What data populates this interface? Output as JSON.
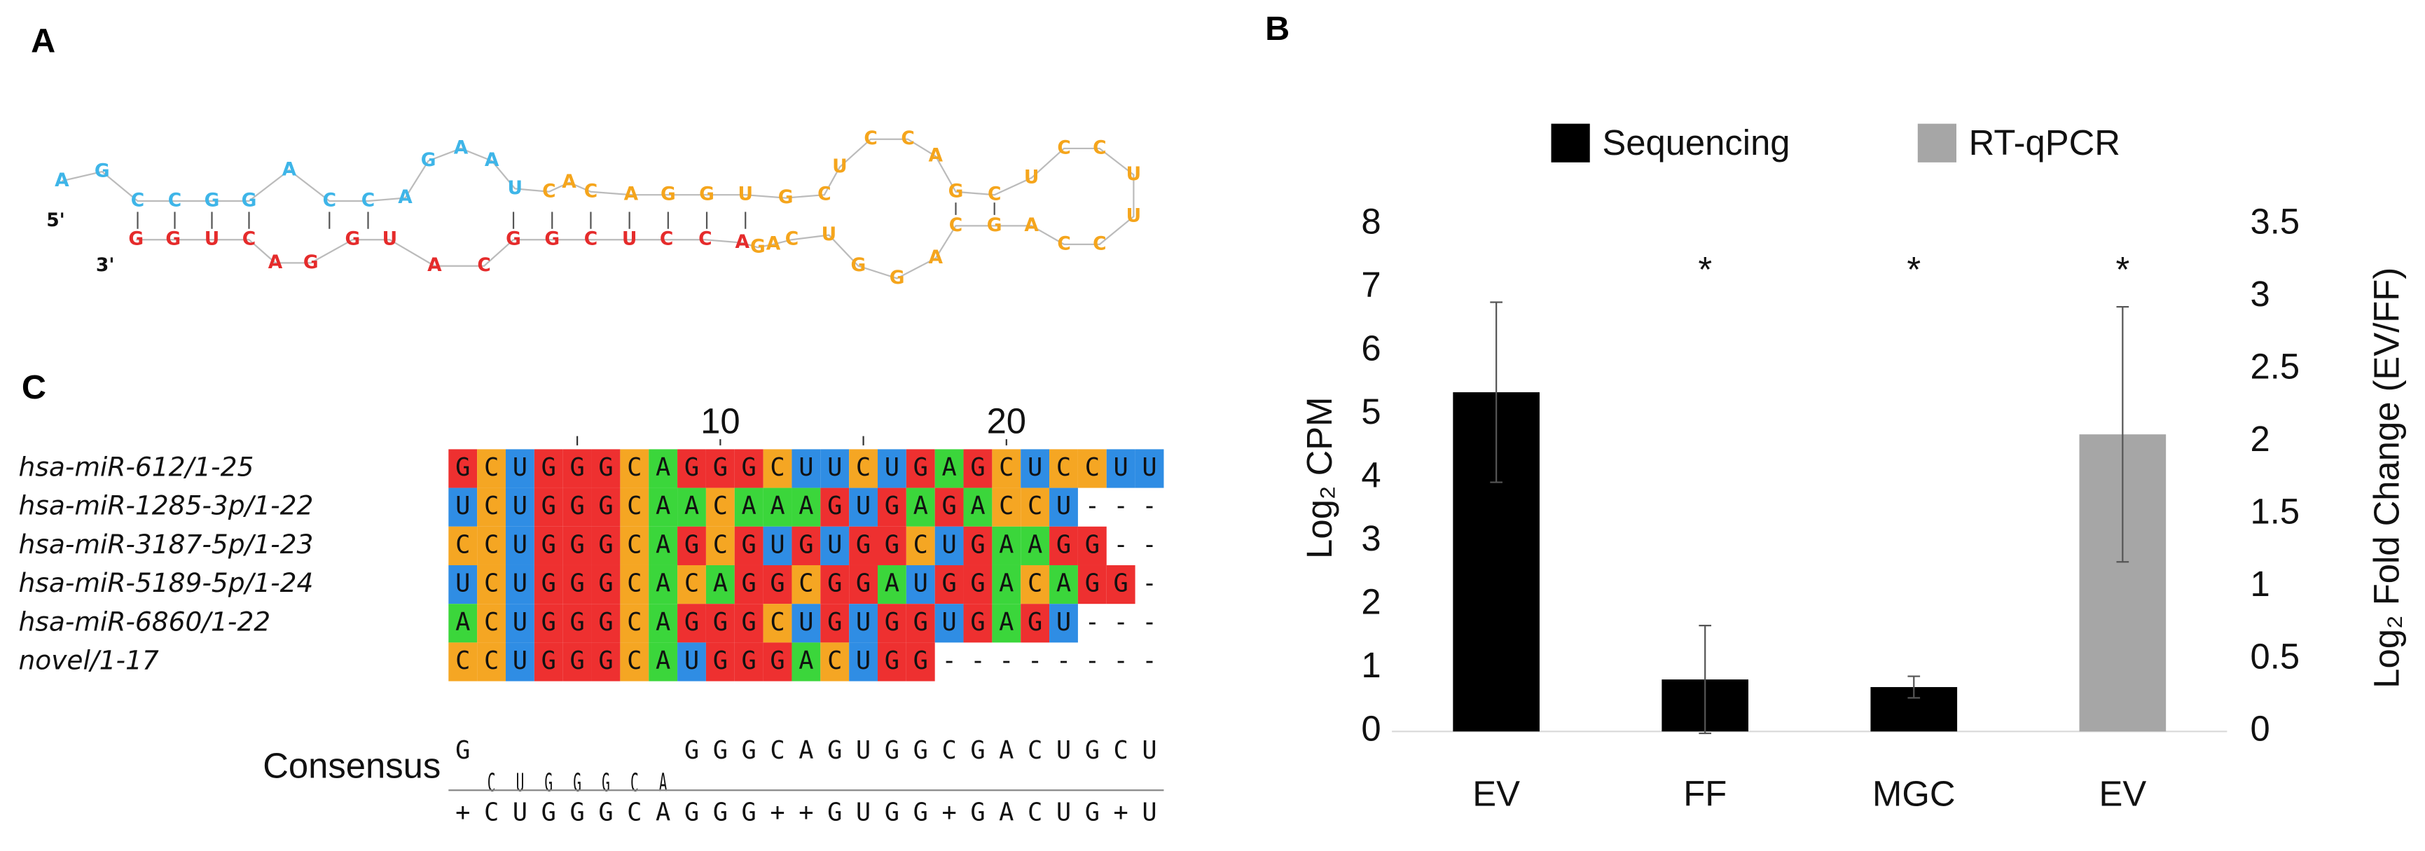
{
  "panel_labels": [
    "A",
    "B",
    "C"
  ],
  "panel_a": {
    "five_prime": "5'",
    "three_prime": "3'",
    "strands": [
      {
        "color": "#3eb5e8",
        "sequence": "AGCCGGACCAGAAU"
      },
      {
        "color": "#e52b2b",
        "sequence": "GGUCAGGUACGGCUCCA"
      },
      {
        "color": "#f5a51c",
        "sequence": "CACAGGUGCUCCAGCUCCUUCCAGCAGGUCAG"
      }
    ]
  },
  "chart_data": {
    "type": "bar",
    "legend": "top",
    "categories": [
      "EV",
      "FF",
      "MGC",
      "EV"
    ],
    "series": [
      {
        "name": "Sequencing",
        "color": "#000000",
        "values": [
          5.35,
          0.82,
          0.7,
          null
        ],
        "errors": [
          1.42,
          0.85,
          0.17,
          null
        ]
      },
      {
        "name": "RT-qPCR",
        "color": "#a6a6a6",
        "axis": "y2",
        "values": [
          null,
          null,
          null,
          2.05
        ],
        "errors": [
          null,
          null,
          null,
          0.88
        ]
      }
    ],
    "significance": [
      null,
      "*",
      "*",
      "*"
    ],
    "ylim": [
      0,
      8
    ],
    "yticks": [
      0,
      1,
      2,
      3,
      4,
      5,
      6,
      7,
      8
    ],
    "y2lim": [
      0,
      3.5
    ],
    "y2ticks": [
      0,
      0.5,
      1,
      1.5,
      2,
      2.5,
      3,
      3.5
    ],
    "ylabel": "Log₂ CPM",
    "y2label": "Log₂ Fold Change (EV/FF)"
  },
  "panel_c": {
    "ruler_ticks": [
      10,
      20
    ],
    "rows": [
      {
        "name": "hsa-miR-612/1-25",
        "sequence": "GCUGGGCAGGGCUUCUGAGCUCCUU"
      },
      {
        "name": "hsa-miR-1285-3p/1-22",
        "sequence": "UCUGGGCAACAAAGUGAGACCU---"
      },
      {
        "name": "hsa-miR-3187-5p/1-23",
        "sequence": "CCUGGGCAGCGUGUGGCUGAAGG--"
      },
      {
        "name": "hsa-miR-5189-5p/1-24",
        "sequence": "UCUGGGCACAGGCGGAUGGACAGG-"
      },
      {
        "name": "hsa-miR-6860/1-22",
        "sequence": "ACUGGGCAGGGCUGUGGUGAGU---"
      },
      {
        "name": "novel/1-17",
        "sequence": "CCUGGGCAUGGGACUGG--------"
      }
    ],
    "consensus_label": "Consensus",
    "logo": "GCUGGGCAGGGCAGUGGCGACUGCU",
    "consensus": "+CUGGGCAGGG++GUGG+GACUG+U"
  }
}
